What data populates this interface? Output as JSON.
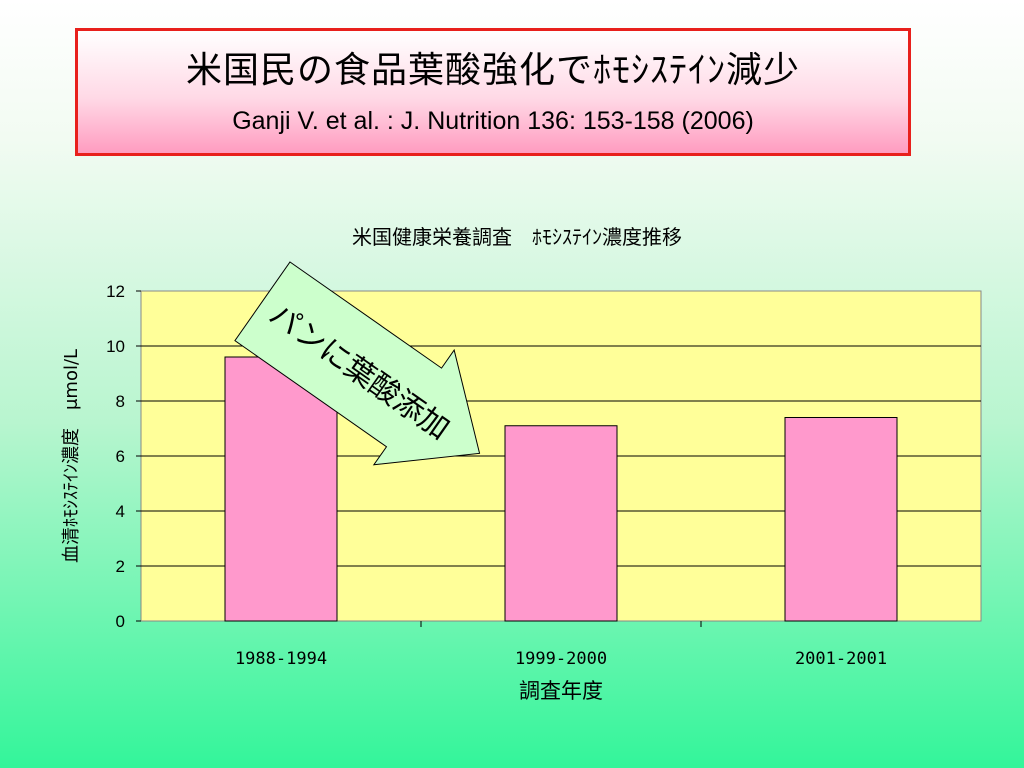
{
  "slide": {
    "title": "米国民の食品葉酸強化でﾎﾓｼｽﾃｲﾝ減少",
    "citation": "Ganji V. et al. : J. Nutrition 136: 153-158 (2006)"
  },
  "annotation": {
    "text": "パンに葉酸添加",
    "fill": "#ccffcc"
  },
  "chart_data": {
    "type": "bar",
    "title": "米国健康栄養調査　ﾎﾓｼｽﾃｲﾝ濃度推移",
    "xlabel": "調査年度",
    "ylabel": "血清ﾎﾓｼｽﾃｲﾝ濃度　μmol/L",
    "categories": [
      "1988-1994",
      "1999-2000",
      "2001-2001"
    ],
    "values": [
      9.6,
      7.1,
      7.4
    ],
    "ylim": [
      0,
      12
    ],
    "yticks": [
      "0",
      "2",
      "4",
      "6",
      "8",
      "10",
      "12"
    ],
    "grid": true,
    "bar_color": "#ff99cc",
    "plot_bg": "#ffff99",
    "legend": false
  }
}
